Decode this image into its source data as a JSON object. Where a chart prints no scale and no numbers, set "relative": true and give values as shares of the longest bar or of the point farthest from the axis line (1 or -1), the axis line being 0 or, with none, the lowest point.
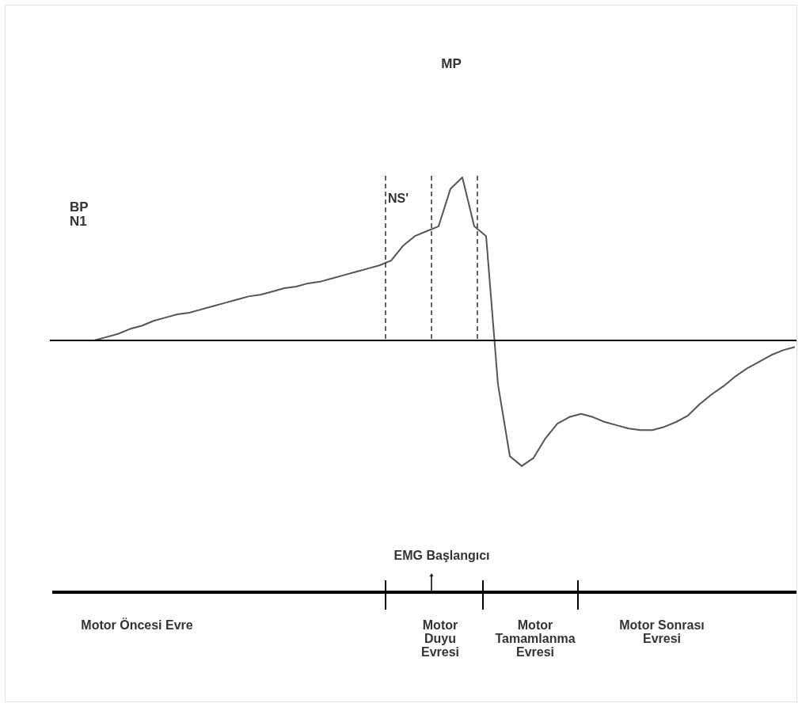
{
  "chart_data": {
    "type": "line",
    "relative": true,
    "tick_labels": false,
    "grid": false,
    "marker": "none",
    "line_style": "solid",
    "categories": [
      null,
      null,
      null,
      null,
      null,
      null,
      null,
      null,
      null,
      null,
      null,
      null,
      null,
      null,
      null,
      null,
      null,
      null,
      null,
      null,
      null,
      null,
      null,
      null,
      null,
      null,
      null,
      null,
      null,
      null,
      null,
      null,
      null,
      null,
      null,
      null,
      null,
      null,
      null,
      null,
      null,
      null,
      null,
      null,
      null,
      null,
      null,
      null,
      null,
      null,
      null,
      null,
      null,
      null,
      null,
      null,
      null,
      null,
      null,
      null
    ],
    "series": [
      {
        "color": "#555555",
        "values": [
          0,
          0.02,
          0.04,
          0.07,
          0.09,
          0.12,
          0.14,
          0.16,
          0.17,
          0.19,
          0.21,
          0.23,
          0.25,
          0.27,
          0.28,
          0.3,
          0.32,
          0.33,
          0.35,
          0.36,
          0.38,
          0.4,
          0.42,
          0.44,
          0.46,
          0.49,
          0.58,
          0.64,
          0.67,
          0.7,
          0.93,
          1,
          0.7,
          0.64,
          -0.27,
          -0.71,
          -0.77,
          -0.72,
          -0.6,
          -0.51,
          -0.47,
          -0.45,
          -0.47,
          -0.5,
          -0.52,
          -0.54,
          -0.55,
          -0.55,
          -0.53,
          -0.5,
          -0.46,
          -0.39,
          -0.33,
          -0.28,
          -0.22,
          -0.17,
          -0.13,
          -0.09,
          -0.06,
          -0.04
        ]
      }
    ],
    "annotations": [
      "MP",
      "BP\nN1",
      "NS'",
      "EMG Başlangıcı",
      "Motor Öncesi Evre",
      "Motor\nDuyu\nEvresi",
      "Motor\nTamamlanma\nEvresi",
      "Motor Sonrası\nEvresi"
    ]
  }
}
